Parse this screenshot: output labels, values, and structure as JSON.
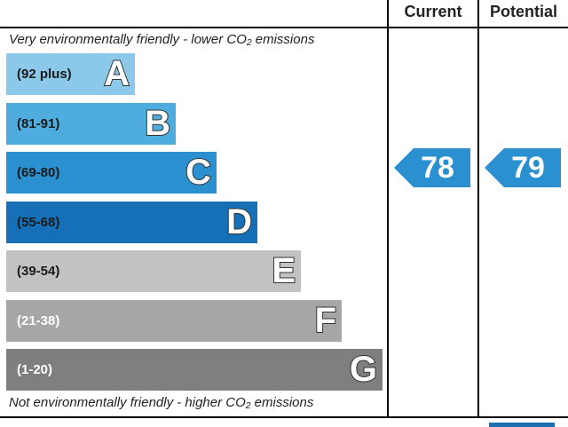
{
  "header": {
    "current_label": "Current",
    "potential_label": "Potential"
  },
  "top_caption": "Very environmentally friendly - lower CO₂ emissions",
  "bottom_caption": "Not environmentally friendly - higher CO₂ emissions",
  "chart_data": {
    "type": "bar",
    "title": "",
    "categories": [
      "A",
      "B",
      "C",
      "D",
      "E",
      "F",
      "G"
    ],
    "bands": [
      {
        "letter": "A",
        "range": "(92 plus)",
        "min": 92,
        "max": 100,
        "color": "#8cc8ea",
        "text_color": "#1a1a1a"
      },
      {
        "letter": "B",
        "range": "(81-91)",
        "min": 81,
        "max": 91,
        "color": "#4facdf",
        "text_color": "#1a1a1a"
      },
      {
        "letter": "C",
        "range": "(69-80)",
        "min": 69,
        "max": 80,
        "color": "#2a90d0",
        "text_color": "#1a1a1a"
      },
      {
        "letter": "D",
        "range": "(55-68)",
        "min": 55,
        "max": 68,
        "color": "#1670b8",
        "text_color": "#1a1a1a"
      },
      {
        "letter": "E",
        "range": "(39-54)",
        "min": 39,
        "max": 54,
        "color": "#c2c2c2",
        "text_color": "#1a1a1a"
      },
      {
        "letter": "F",
        "range": "(21-38)",
        "min": 21,
        "max": 38,
        "color": "#a6a6a6",
        "text_color": "#ffffff"
      },
      {
        "letter": "G",
        "range": "(1-20)",
        "min": 1,
        "max": 20,
        "color": "#7f7f7f",
        "text_color": "#ffffff"
      }
    ],
    "series": [
      {
        "name": "Current",
        "value": 78,
        "band": "C"
      },
      {
        "name": "Potential",
        "value": 79,
        "band": "C"
      }
    ],
    "marker_color": "#2a90d0"
  }
}
